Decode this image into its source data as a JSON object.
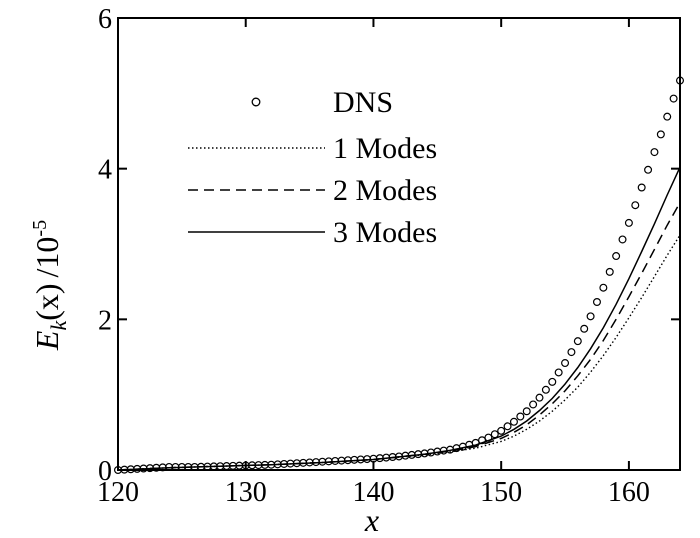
{
  "chart_data": {
    "type": "line",
    "xlabel": "x",
    "ylabel": {
      "main": "E",
      "sub": "k",
      "paren": "(x)",
      "unit_base": "/10",
      "unit_exp": "-5"
    },
    "xlim": [
      120,
      164
    ],
    "ylim": [
      0,
      6
    ],
    "x_ticks": [
      120,
      130,
      140,
      150,
      160
    ],
    "y_ticks": [
      0,
      2,
      4,
      6
    ],
    "x_tick_labels": [
      "120",
      "130",
      "140",
      "150",
      "160"
    ],
    "y_tick_labels": [
      "0",
      "2",
      "4",
      "6"
    ],
    "legend_position": "upper-middle",
    "series": [
      {
        "name": "DNS",
        "style": "circles",
        "x": [
          120,
          122,
          124,
          126,
          128,
          130,
          132,
          134,
          136,
          138,
          140,
          142,
          144,
          146,
          147,
          148,
          149,
          150,
          151,
          152,
          153,
          154,
          155,
          156,
          157,
          158,
          159,
          160,
          161,
          162,
          163,
          164
        ],
        "y": [
          0.0,
          0.02,
          0.04,
          0.04,
          0.05,
          0.06,
          0.07,
          0.09,
          0.11,
          0.13,
          0.15,
          0.18,
          0.22,
          0.27,
          0.31,
          0.36,
          0.43,
          0.52,
          0.64,
          0.78,
          0.96,
          1.17,
          1.42,
          1.71,
          2.04,
          2.42,
          2.84,
          3.28,
          3.75,
          4.22,
          4.69,
          5.17
        ]
      },
      {
        "name": "1 Modes",
        "style": "dotted",
        "x": [
          120,
          124,
          128,
          132,
          136,
          140,
          144,
          146,
          148,
          150,
          151,
          152,
          153,
          154,
          155,
          156,
          157,
          158,
          159,
          160,
          161,
          162,
          163,
          164
        ],
        "y": [
          0.0,
          0.03,
          0.05,
          0.07,
          0.1,
          0.14,
          0.2,
          0.24,
          0.29,
          0.38,
          0.45,
          0.54,
          0.65,
          0.78,
          0.93,
          1.1,
          1.3,
          1.52,
          1.76,
          2.02,
          2.29,
          2.57,
          2.85,
          3.12
        ]
      },
      {
        "name": "2 Modes",
        "style": "dashed",
        "x": [
          120,
          124,
          128,
          132,
          136,
          140,
          144,
          146,
          148,
          150,
          151,
          152,
          153,
          154,
          155,
          156,
          157,
          158,
          159,
          160,
          161,
          162,
          163,
          164
        ],
        "y": [
          0.0,
          0.03,
          0.05,
          0.07,
          0.1,
          0.14,
          0.21,
          0.25,
          0.31,
          0.42,
          0.5,
          0.6,
          0.73,
          0.88,
          1.05,
          1.25,
          1.47,
          1.72,
          2.0,
          2.3,
          2.61,
          2.93,
          3.25,
          3.55
        ]
      },
      {
        "name": "3 Modes",
        "style": "solid",
        "x": [
          120,
          124,
          128,
          132,
          136,
          140,
          144,
          146,
          148,
          150,
          151,
          152,
          153,
          154,
          155,
          156,
          157,
          158,
          159,
          160,
          161,
          162,
          163,
          164
        ],
        "y": [
          0.0,
          0.03,
          0.05,
          0.07,
          0.1,
          0.14,
          0.21,
          0.26,
          0.33,
          0.45,
          0.54,
          0.65,
          0.79,
          0.95,
          1.14,
          1.36,
          1.61,
          1.89,
          2.2,
          2.54,
          2.9,
          3.27,
          3.65,
          4.02
        ]
      }
    ]
  }
}
